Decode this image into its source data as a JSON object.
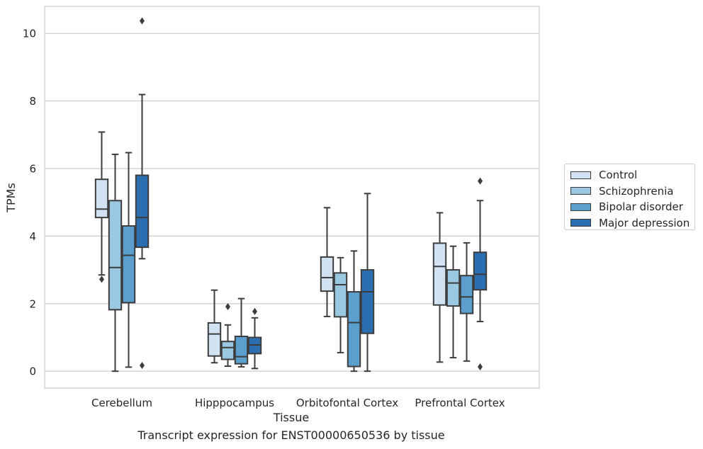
{
  "caption": "Transcript expression for ENST00000650536 by tissue",
  "chart_data": {
    "type": "box",
    "xlabel": "Tissue",
    "ylabel": "TPMs",
    "ylim": [
      -0.5,
      10.8
    ],
    "yticks": [
      0,
      2,
      4,
      6,
      8,
      10
    ],
    "grid": true,
    "legend_position": "right",
    "categories": [
      "Cerebellum",
      "Hipppocampus",
      "Orbitofontal Cortex",
      "Prefrontal Cortex"
    ],
    "series": [
      {
        "name": "Control",
        "color": "#d1e2f2",
        "boxes": [
          {
            "whisker_low": 2.85,
            "q1": 4.55,
            "median": 4.8,
            "q3": 5.68,
            "whisker_high": 7.08,
            "outliers": [
              2.72
            ]
          },
          {
            "whisker_low": 0.25,
            "q1": 0.45,
            "median": 1.1,
            "q3": 1.43,
            "whisker_high": 2.4,
            "outliers": []
          },
          {
            "whisker_low": 1.62,
            "q1": 2.37,
            "median": 2.77,
            "q3": 3.38,
            "whisker_high": 4.84,
            "outliers": []
          },
          {
            "whisker_low": 0.27,
            "q1": 1.96,
            "median": 3.1,
            "q3": 3.79,
            "whisker_high": 4.69,
            "outliers": []
          }
        ]
      },
      {
        "name": "Schizophrenia",
        "color": "#9ac8e0",
        "boxes": [
          {
            "whisker_low": 0.0,
            "q1": 1.82,
            "median": 3.07,
            "q3": 5.05,
            "whisker_high": 6.42,
            "outliers": []
          },
          {
            "whisker_low": 0.15,
            "q1": 0.35,
            "median": 0.7,
            "q3": 0.88,
            "whisker_high": 1.37,
            "outliers": [
              1.91
            ]
          },
          {
            "whisker_low": 0.55,
            "q1": 1.61,
            "median": 2.56,
            "q3": 2.91,
            "whisker_high": 3.36,
            "outliers": []
          },
          {
            "whisker_low": 0.4,
            "q1": 1.93,
            "median": 2.61,
            "q3": 3.0,
            "whisker_high": 3.7,
            "outliers": []
          }
        ]
      },
      {
        "name": "Bipolar disorder",
        "color": "#5a9fcd",
        "boxes": [
          {
            "whisker_low": 0.12,
            "q1": 2.03,
            "median": 3.43,
            "q3": 4.3,
            "whisker_high": 6.47,
            "outliers": []
          },
          {
            "whisker_low": 0.13,
            "q1": 0.22,
            "median": 0.43,
            "q3": 1.03,
            "whisker_high": 2.15,
            "outliers": []
          },
          {
            "whisker_low": 0.0,
            "q1": 0.14,
            "median": 1.44,
            "q3": 2.35,
            "whisker_high": 3.56,
            "outliers": []
          },
          {
            "whisker_low": 0.3,
            "q1": 1.71,
            "median": 2.2,
            "q3": 2.83,
            "whisker_high": 3.8,
            "outliers": []
          }
        ]
      },
      {
        "name": "Major depression",
        "color": "#2b6fb0",
        "boxes": [
          {
            "whisker_low": 3.33,
            "q1": 3.67,
            "median": 4.55,
            "q3": 5.8,
            "whisker_high": 8.19,
            "outliers": [
              10.37,
              0.17
            ]
          },
          {
            "whisker_low": 0.08,
            "q1": 0.52,
            "median": 0.78,
            "q3": 1.0,
            "whisker_high": 1.58,
            "outliers": [
              1.77
            ]
          },
          {
            "whisker_low": 0.0,
            "q1": 1.12,
            "median": 2.35,
            "q3": 3.0,
            "whisker_high": 5.26,
            "outliers": []
          },
          {
            "whisker_low": 1.47,
            "q1": 2.41,
            "median": 2.87,
            "q3": 3.52,
            "whisker_high": 5.05,
            "outliers": [
              5.63,
              0.13
            ]
          }
        ]
      }
    ]
  }
}
